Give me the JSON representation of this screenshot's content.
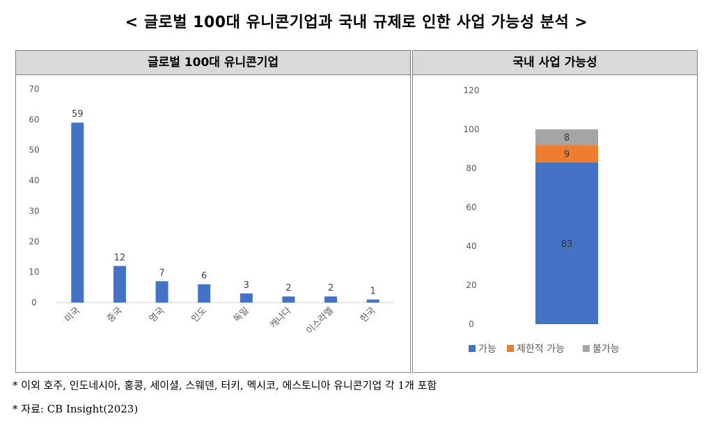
{
  "title": "< 글로벌 100대 유니콘기업과 국내 규제로 인한 사업 가능성 분석 >",
  "footnotes": [
    "* 이외 호주, 인도네시아, 홍콩, 세이셜, 스웨덴, 터키, 멕시코, 에스토니아 유니콘기업 각 1개 포함",
    "* 자료: CB Insight(2023)"
  ],
  "colors": {
    "bar": "#4472c4",
    "possible": "#4472c4",
    "limited": "#ed7d31",
    "impossible": "#a5a5a5"
  },
  "chart_data": [
    {
      "type": "bar",
      "title": "글로벌 100대 유니콘기업",
      "categories": [
        "미국",
        "중국",
        "영국",
        "인도",
        "독일",
        "캐나다",
        "이스라엘",
        "한국"
      ],
      "values": [
        59,
        12,
        7,
        6,
        3,
        2,
        2,
        1
      ],
      "ylim": [
        0,
        70
      ],
      "yticks": [
        "0",
        "10",
        "20",
        "30",
        "40",
        "50",
        "60",
        "70"
      ],
      "xlabel": "",
      "ylabel": "",
      "grid": false,
      "data_labels": true
    },
    {
      "type": "bar",
      "stacked": true,
      "title": "국내 사업 가능성",
      "categories": [
        ""
      ],
      "series": [
        {
          "name": "가능",
          "values": [
            83
          ]
        },
        {
          "name": "제한적 가능",
          "values": [
            9
          ]
        },
        {
          "name": "불가능",
          "values": [
            8
          ]
        }
      ],
      "ylim": [
        0,
        120
      ],
      "yticks": [
        "0",
        "20",
        "40",
        "60",
        "80",
        "100",
        "120"
      ],
      "legend": "bottom",
      "grid": false,
      "data_labels": true
    }
  ]
}
